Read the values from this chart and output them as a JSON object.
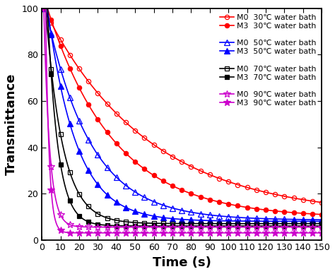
{
  "title": "",
  "xlabel": "Time (s)",
  "ylabel": "Transmittance",
  "xlim": [
    0,
    150
  ],
  "ylim": [
    0,
    100
  ],
  "xticks": [
    0,
    10,
    20,
    30,
    40,
    50,
    60,
    70,
    80,
    90,
    100,
    110,
    120,
    130,
    140,
    150
  ],
  "yticks": [
    0,
    20,
    40,
    60,
    80,
    100
  ],
  "series": [
    {
      "label": "M0  30℃ water bath",
      "color": "#ff0000",
      "marker": "o",
      "fillstyle": "none",
      "decay_rate": 0.018,
      "plateau": 10.0,
      "peak": 100,
      "peak_t": 1
    },
    {
      "label": "M3  30℃ water bath",
      "color": "#ff0000",
      "marker": "o",
      "fillstyle": "full",
      "decay_rate": 0.028,
      "plateau": 9.5,
      "peak": 100,
      "peak_t": 3
    },
    {
      "label": "M0  50℃ water bath",
      "color": "#0000ff",
      "marker": "^",
      "fillstyle": "none",
      "decay_rate": 0.042,
      "plateau": 8.5,
      "peak": 100,
      "peak_t": 2
    },
    {
      "label": "M3  50℃ water bath",
      "color": "#0000ff",
      "marker": "^",
      "fillstyle": "full",
      "decay_rate": 0.065,
      "plateau": 8.0,
      "peak": 100,
      "peak_t": 3
    },
    {
      "label": "M0  70℃ water bath",
      "color": "#000000",
      "marker": "s",
      "fillstyle": "none",
      "decay_rate": 0.11,
      "plateau": 7.0,
      "peak": 100,
      "peak_t": 2
    },
    {
      "label": "M3  70℃ water bath",
      "color": "#000000",
      "marker": "s",
      "fillstyle": "full",
      "decay_rate": 0.18,
      "plateau": 6.0,
      "peak": 100,
      "peak_t": 3
    },
    {
      "label": "M0  90℃ water bath",
      "color": "#cc00cc",
      "marker": "*",
      "fillstyle": "none",
      "decay_rate": 0.32,
      "plateau": 5.5,
      "peak": 100,
      "peak_t": 1
    },
    {
      "label": "M3  90℃ water bath",
      "color": "#cc00cc",
      "marker": "*",
      "fillstyle": "full",
      "decay_rate": 0.55,
      "plateau": 3.0,
      "peak": 100,
      "peak_t": 2
    }
  ],
  "background_color": "#ffffff",
  "figsize": [
    4.74,
    3.88
  ],
  "dpi": 100,
  "legend_fontsize": 7.8,
  "axis_label_fontsize": 13,
  "tick_fontsize": 9,
  "marker_interval": 5
}
